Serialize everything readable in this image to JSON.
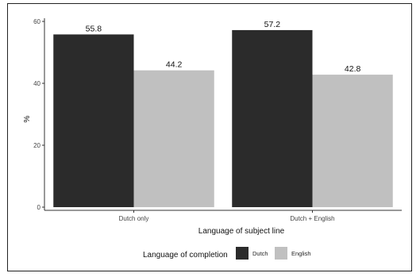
{
  "chart_data": {
    "type": "bar",
    "categories": [
      "Dutch only",
      "Dutch + English"
    ],
    "series": [
      {
        "name": "Dutch",
        "values": [
          55.8,
          57.2
        ],
        "labels": [
          "55.8",
          "57.2"
        ],
        "color": "#2b2b2b"
      },
      {
        "name": "English",
        "values": [
          44.2,
          42.8
        ],
        "labels": [
          "44.2",
          "42.8"
        ],
        "color": "#c0c0c0"
      }
    ],
    "xlabel": "Language of subject line",
    "ylabel": "%",
    "ylim": [
      0,
      60
    ],
    "yticks": [
      0,
      20,
      40,
      60
    ],
    "grid": false,
    "legend": {
      "title": "Language of completion",
      "position": "bottom"
    }
  }
}
